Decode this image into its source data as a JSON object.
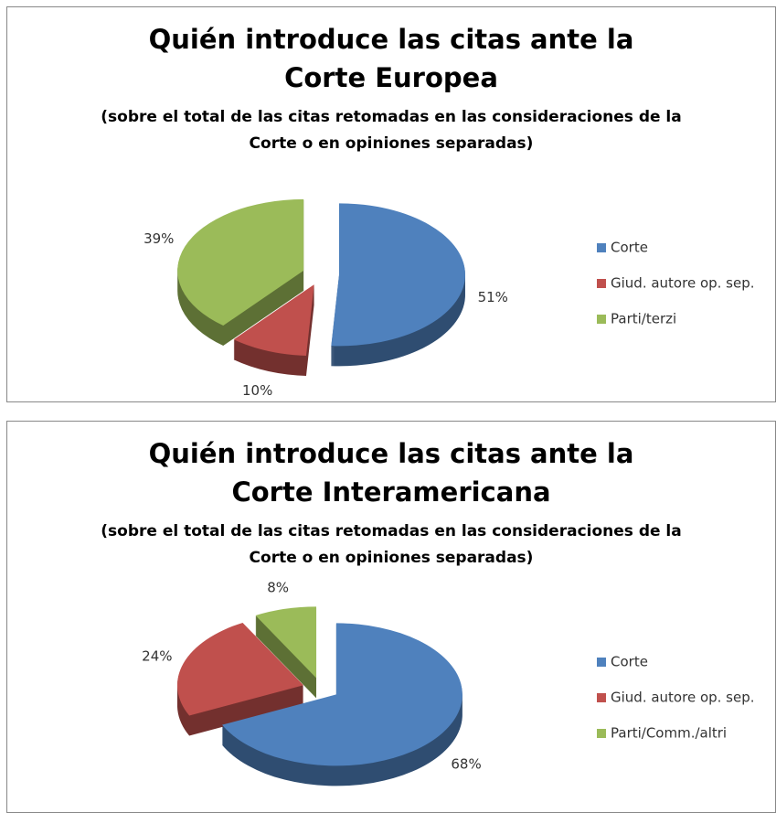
{
  "chart_data": [
    {
      "type": "pie",
      "title": "Quién introduce las citas ante la Corte Europea",
      "subtitle": "(sobre el total de las citas retomadas en las consideraciones de la Corte o en opiniones separadas)",
      "categories": [
        "Corte",
        "Giud. autore op. sep.",
        "Parti/terzi"
      ],
      "values": [
        51,
        10,
        39
      ],
      "value_labels": [
        "51%",
        "10%",
        "39%"
      ],
      "colors": [
        "#4f81bd",
        "#c0504d",
        "#9bbb59"
      ],
      "legend": "right"
    },
    {
      "type": "pie",
      "title": "Quién introduce las citas ante la Corte Interamericana",
      "subtitle": "(sobre el total de las citas retomadas en las consideraciones de la Corte o en opiniones separadas)",
      "categories": [
        "Corte",
        "Giud. autore op. sep.",
        "Parti/Comm./altri"
      ],
      "values": [
        68,
        24,
        8
      ],
      "value_labels": [
        "68%",
        "24%",
        "8%"
      ],
      "colors": [
        "#4f81bd",
        "#c0504d",
        "#9bbb59"
      ],
      "legend": "right"
    }
  ]
}
